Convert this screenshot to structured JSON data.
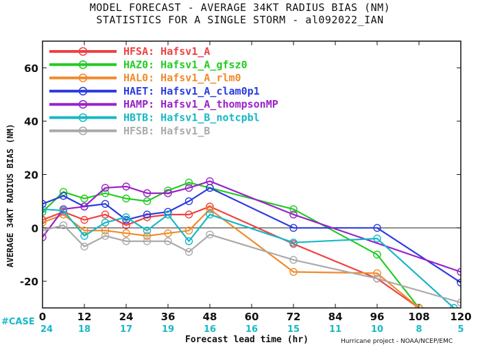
{
  "title_line1": "MODEL FORECAST - AVERAGE 34KT RADIUS BIAS (NM)",
  "title_line2": "STATISTICS FOR A SINGLE STORM - al092022_IAN",
  "credit": "Hurricane project - NOAA/NCEP/EMC",
  "case_label": "#CASE",
  "chart_data": {
    "type": "line",
    "xlabel": "Forecast lead time (hr)",
    "ylabel": "AVERAGE 34KT RADIUS BIAS (NM)",
    "xlim": [
      0,
      120
    ],
    "ylim": [
      -30,
      70
    ],
    "xticks": [
      0,
      12,
      24,
      36,
      48,
      60,
      72,
      84,
      96,
      108,
      120
    ],
    "yticks": [
      -20,
      0,
      20,
      40,
      60
    ],
    "case_counts": [
      24,
      18,
      17,
      19,
      16,
      16,
      15,
      11,
      10,
      8,
      5
    ],
    "zero_line": true,
    "legend_position": "top-left",
    "series": [
      {
        "name": "HFSA: Hafsv1_A",
        "color": "#f04040",
        "points": [
          [
            0,
            3
          ],
          [
            6,
            6
          ],
          [
            12,
            3
          ],
          [
            18,
            5
          ],
          [
            24,
            1
          ],
          [
            30,
            4
          ],
          [
            36,
            5
          ],
          [
            42,
            5
          ],
          [
            48,
            8
          ],
          [
            72,
            -6
          ],
          [
            96,
            -19
          ],
          [
            108,
            -30
          ]
        ]
      },
      {
        "name": "HAZ0: Hafsv1_A_gfsz0",
        "color": "#22cc22",
        "points": [
          [
            0,
            6
          ],
          [
            6,
            13.5
          ],
          [
            12,
            11
          ],
          [
            18,
            13
          ],
          [
            24,
            11
          ],
          [
            30,
            10
          ],
          [
            36,
            14
          ],
          [
            42,
            17
          ],
          [
            48,
            15
          ],
          [
            72,
            7
          ],
          [
            96,
            -10
          ],
          [
            108,
            -30
          ]
        ]
      },
      {
        "name": "HAL0: Hafsv1_A_rlm0",
        "color": "#f08a2a",
        "points": [
          [
            0,
            2
          ],
          [
            6,
            5
          ],
          [
            12,
            -1
          ],
          [
            18,
            -1
          ],
          [
            24,
            -2
          ],
          [
            30,
            -3
          ],
          [
            36,
            -2
          ],
          [
            42,
            -1
          ],
          [
            48,
            7
          ],
          [
            72,
            -16.5
          ],
          [
            96,
            -17
          ],
          [
            108,
            -30
          ]
        ]
      },
      {
        "name": "HAET: Hafsv1_A_clam0p1",
        "color": "#2b3be0",
        "points": [
          [
            0,
            9
          ],
          [
            6,
            12
          ],
          [
            12,
            8
          ],
          [
            18,
            9
          ],
          [
            24,
            3
          ],
          [
            30,
            5
          ],
          [
            36,
            6
          ],
          [
            42,
            10
          ],
          [
            48,
            15
          ],
          [
            72,
            0
          ],
          [
            96,
            0
          ],
          [
            120,
            -20.5
          ]
        ]
      },
      {
        "name": "HAMP: Hafsv1_A_thompsonMP",
        "color": "#9a22c8",
        "points": [
          [
            0,
            -3.5
          ],
          [
            6,
            7
          ],
          [
            12,
            8
          ],
          [
            18,
            15
          ],
          [
            24,
            15.5
          ],
          [
            30,
            13
          ],
          [
            36,
            13
          ],
          [
            42,
            15
          ],
          [
            48,
            17.5
          ],
          [
            72,
            5
          ],
          [
            120,
            -16.5
          ]
        ]
      },
      {
        "name": "HBTB: Hafsv1_B_notcpbl",
        "color": "#17b7c7",
        "points": [
          [
            0,
            7
          ],
          [
            6,
            6.5
          ],
          [
            12,
            -3
          ],
          [
            18,
            2
          ],
          [
            24,
            4
          ],
          [
            30,
            -1
          ],
          [
            36,
            5
          ],
          [
            42,
            -5
          ],
          [
            48,
            5
          ],
          [
            72,
            -5.5
          ],
          [
            96,
            -4
          ],
          [
            118,
            -30
          ]
        ]
      },
      {
        "name": "HFSB: Hafsv1_B",
        "color": "#aaaaaa",
        "points": [
          [
            0,
            -1
          ],
          [
            6,
            1
          ],
          [
            12,
            -7
          ],
          [
            18,
            -3
          ],
          [
            24,
            -5
          ],
          [
            30,
            -5
          ],
          [
            36,
            -5
          ],
          [
            42,
            -9
          ],
          [
            48,
            -2.5
          ],
          [
            72,
            -12
          ],
          [
            96,
            -19
          ],
          [
            120,
            -28
          ]
        ]
      }
    ]
  }
}
